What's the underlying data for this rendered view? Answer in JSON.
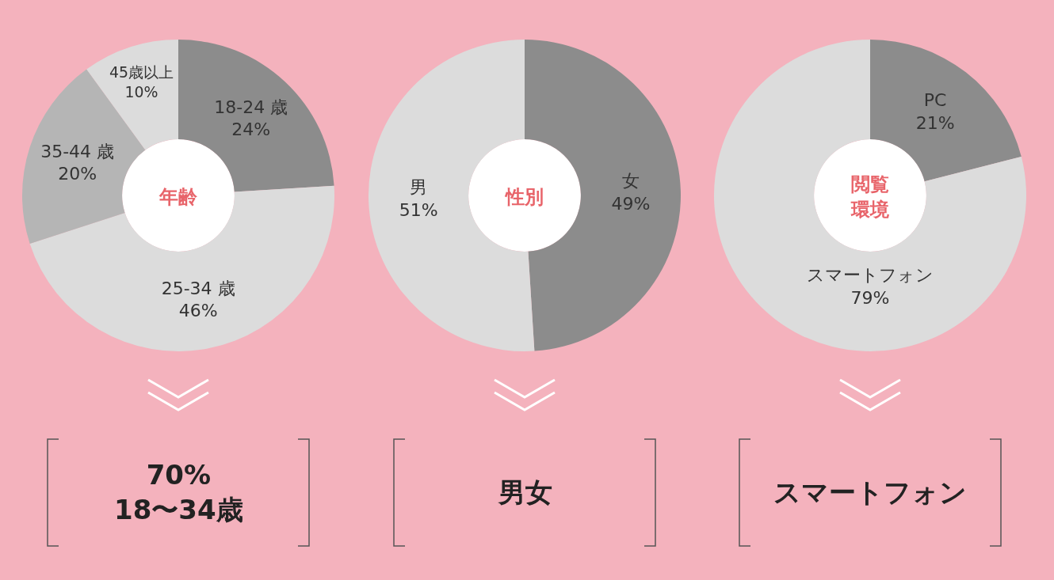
{
  "chart_data": [
    {
      "type": "donut",
      "title": "年齢",
      "categories": [
        "18-24 歳",
        "25-34 歳",
        "35-44 歳",
        "45歳以上"
      ],
      "values": [
        24,
        46,
        20,
        10
      ],
      "value_labels": [
        "24%",
        "46%",
        "20%",
        "10%"
      ],
      "colors": [
        "#8c8c8c",
        "#dcdcdc",
        "#b5b5b5",
        "#dcdcdc"
      ],
      "annotations": [
        "70%\n18〜34歳"
      ]
    },
    {
      "type": "donut",
      "title": "性別",
      "categories": [
        "女",
        "男"
      ],
      "values": [
        49,
        51
      ],
      "value_labels": [
        "49%",
        "51%"
      ],
      "colors": [
        "#8c8c8c",
        "#dcdcdc"
      ],
      "annotations": [
        "男女"
      ]
    },
    {
      "type": "donut",
      "title": "閲覧環境",
      "categories": [
        "PC",
        "スマートフォン"
      ],
      "values": [
        21,
        79
      ],
      "value_labels": [
        "21%",
        "79%"
      ],
      "colors": [
        "#8c8c8c",
        "#dcdcdc"
      ],
      "annotations": [
        "スマートフォン"
      ]
    }
  ]
}
